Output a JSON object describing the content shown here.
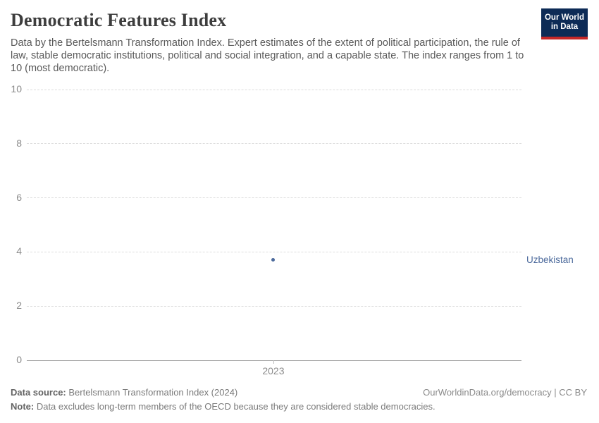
{
  "header": {
    "title": "Democratic Features Index",
    "subtitle": "Data by the Bertelsmann Transformation Index. Expert estimates of the extent of political participation, the rule of law, stable democratic institutions, political and social integration, and a capable state. The index ranges from 1 to 10 (most democratic).",
    "logo": {
      "line1": "Our World",
      "line2": "in Data",
      "bg_color": "#0d2b56",
      "bar_color": "#c62828"
    }
  },
  "chart_data": {
    "type": "scatter",
    "title": "Democratic Features Index",
    "x": [
      2023
    ],
    "series": [
      {
        "name": "Uzbekistan",
        "values": [
          3.7
        ],
        "color": "#4C6A9C"
      }
    ],
    "xlabel": "",
    "ylabel": "",
    "ylim": [
      0,
      10
    ],
    "yticks": [
      0,
      2,
      4,
      6,
      8,
      10
    ],
    "xticks": [
      "2023"
    ],
    "grid": "horizontal-dashed",
    "legend_position": "entity-label-right"
  },
  "footer": {
    "source_label": "Data source:",
    "source_text": " Bertelsmann Transformation Index (2024)",
    "rights": "OurWorldinData.org/democracy | CC BY",
    "note_label": "Note:",
    "note_text": " Data excludes long-term members of the OECD because they are considered stable democracies."
  }
}
